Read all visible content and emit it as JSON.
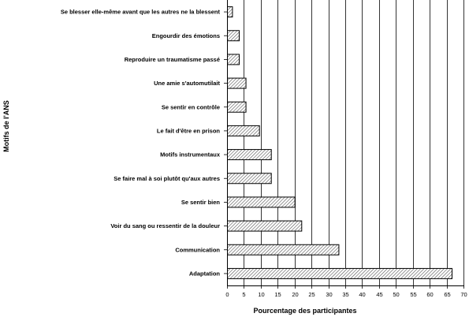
{
  "chart_data": {
    "type": "bar",
    "orientation": "horizontal",
    "title": "",
    "xlabel": "Pourcentage des participantes",
    "ylabel": "Motifs de l'ANS",
    "xlim": [
      0,
      70
    ],
    "xticks": [
      0,
      5,
      10,
      15,
      20,
      25,
      30,
      35,
      40,
      45,
      50,
      55,
      60,
      65,
      70
    ],
    "grid": "vertical",
    "legend": "none",
    "bar_fill": "hatched",
    "categories": [
      "Se blesser elle-même avant que les autres ne la blessent",
      "Engourdir des émotions",
      "Reproduire un traumatisme passé",
      "Une amie s'automutilait",
      "Se sentir en contrôle",
      "Le fait d'être en prison",
      "Motifs instrumentaux",
      "Se faire mal à soi plutôt qu'aux autres",
      "Se sentir bien",
      "Voir du sang ou ressentir de la douleur",
      "Communication",
      "Adaptation"
    ],
    "values": [
      1.5,
      3.5,
      3.5,
      5.5,
      5.5,
      9.5,
      13,
      13,
      20,
      22,
      33,
      66.5
    ]
  }
}
